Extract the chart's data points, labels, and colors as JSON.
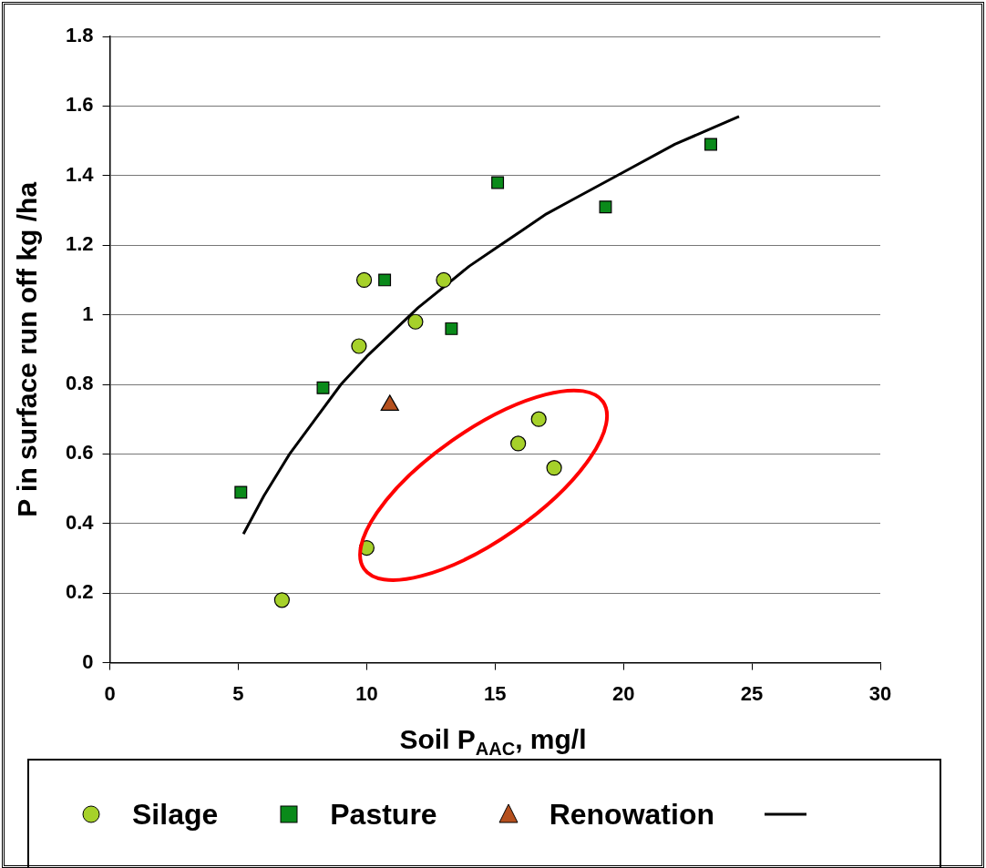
{
  "chart_data": {
    "type": "scatter",
    "xlabel": "Soil P$_{AAC}$, mg/l",
    "ylabel": "P in surface run off kg /ha",
    "xlim": [
      0,
      30
    ],
    "xticks": [
      0,
      5,
      10,
      15,
      20,
      25,
      30
    ],
    "ylim": [
      0,
      1.8
    ],
    "yticks": [
      0,
      0.2,
      0.4,
      0.6,
      0.8,
      1,
      1.2,
      1.4,
      1.6,
      1.8
    ],
    "grid": "y",
    "legend": "bottom",
    "series": [
      {
        "name": "Silage",
        "marker": "circle",
        "color": "#a6d12a",
        "x": [
          6.7,
          9.9,
          9.7,
          10.0,
          11.9,
          13.0,
          15.9,
          16.7,
          17.3
        ],
        "values": [
          0.18,
          1.1,
          0.91,
          0.33,
          0.98,
          1.1,
          0.63,
          0.7,
          0.56
        ]
      },
      {
        "name": "Pasture",
        "marker": "square",
        "color": "#0a8a1a",
        "x": [
          5.1,
          8.3,
          10.7,
          13.3,
          15.1,
          19.3,
          23.4
        ],
        "values": [
          0.49,
          0.79,
          1.1,
          0.96,
          1.38,
          1.31,
          1.49
        ]
      },
      {
        "name": "Renowation",
        "marker": "triangle",
        "color": "#b5501e",
        "x": [
          10.9
        ],
        "values": [
          0.74
        ]
      },
      {
        "type": "line",
        "marker": "none",
        "color": "#000000",
        "x": [
          5.2,
          6,
          7,
          8,
          9,
          10,
          11,
          12,
          13,
          14,
          15,
          16,
          17,
          18,
          19,
          20,
          22,
          24.5
        ],
        "values": [
          0.37,
          0.48,
          0.6,
          0.7,
          0.8,
          0.88,
          0.95,
          1.02,
          1.08,
          1.14,
          1.19,
          1.24,
          1.29,
          1.33,
          1.37,
          1.41,
          1.49,
          1.57
        ]
      }
    ]
  }
}
